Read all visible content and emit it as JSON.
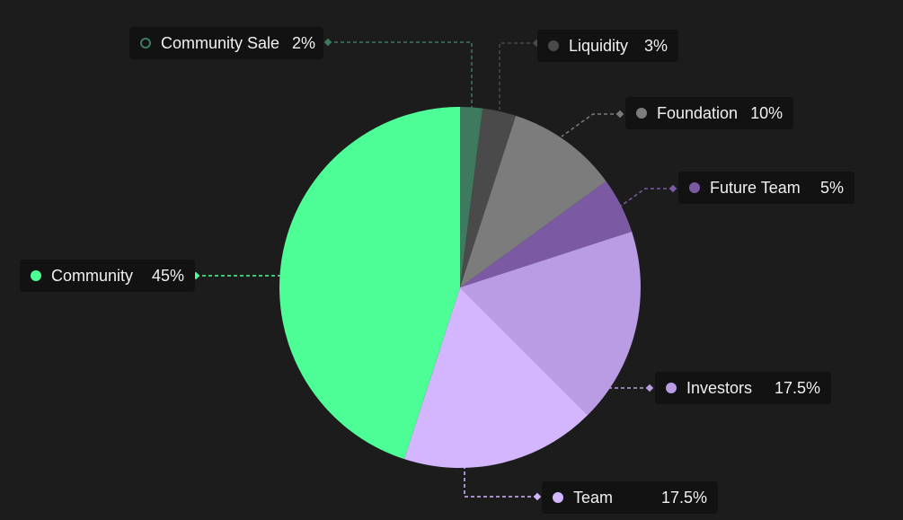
{
  "chart_data": {
    "type": "pie",
    "categories": [
      "Community Sale",
      "Liquidity",
      "Foundation",
      "Future Team",
      "Investors",
      "Team",
      "Community"
    ],
    "values": [
      2,
      3,
      10,
      5,
      17.5,
      17.5,
      45
    ],
    "value_labels": [
      "2%",
      "3%",
      "10%",
      "5%",
      "17.5%",
      "17.5%",
      "45%"
    ],
    "colors": [
      "#3e7a5e",
      "#4a4a4a",
      "#7c7c7c",
      "#7b5aa3",
      "#b99ce3",
      "#d3b6fe",
      "#4dfe96"
    ],
    "legend": "callout labels around the pie"
  }
}
